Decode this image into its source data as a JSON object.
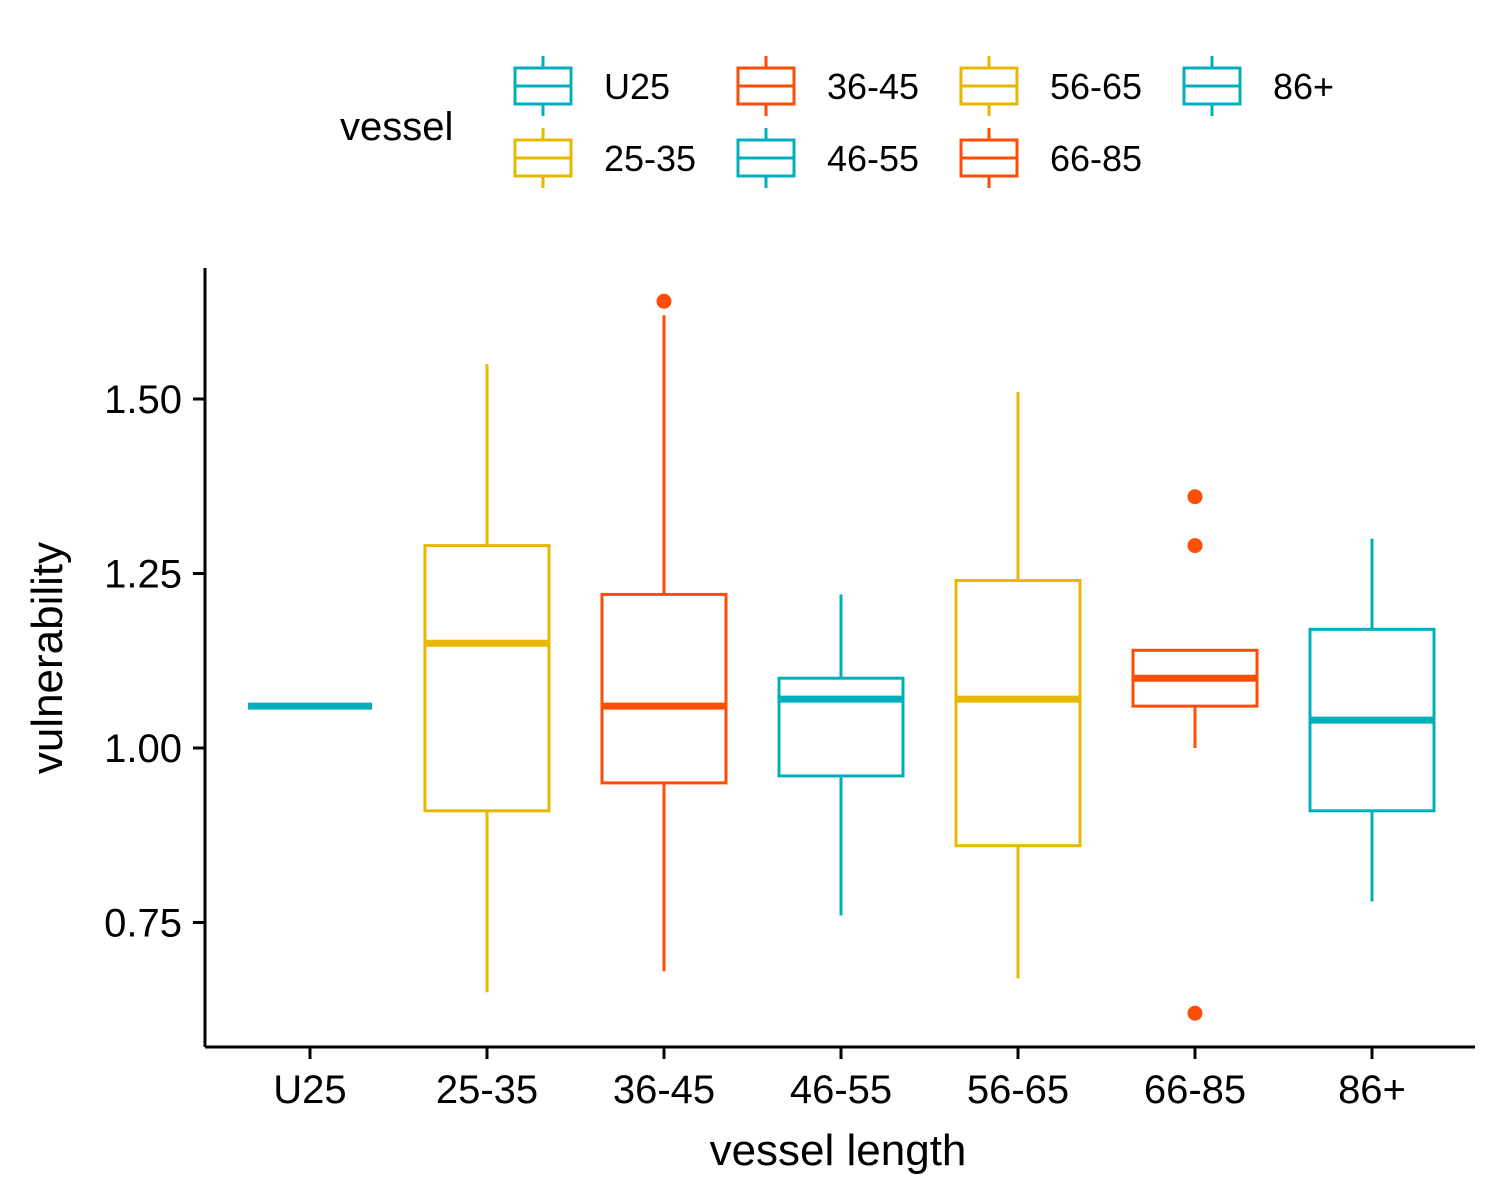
{
  "chart_data": {
    "type": "box",
    "xlabel": "vessel length",
    "ylabel": "vulnerability",
    "ylim": [
      0.595,
      1.69
    ],
    "yticks": [
      0.75,
      1.0,
      1.25,
      1.5
    ],
    "ytick_labels": [
      "0.75",
      "1.00",
      "1.25",
      "1.50"
    ],
    "legend_title": "vessel",
    "legend_position": "top",
    "categories": [
      "U25",
      "25-35",
      "36-45",
      "46-55",
      "56-65",
      "66-85",
      "86+"
    ],
    "colors": [
      "#00AFBB",
      "#E7B800",
      "#FC4E07",
      "#00AFBB",
      "#E7B800",
      "#FC4E07",
      "#00AFBB"
    ],
    "boxes": [
      {
        "category": "U25",
        "lower_whisker": 1.06,
        "q1": 1.06,
        "median": 1.06,
        "q3": 1.06,
        "upper_whisker": 1.06,
        "outliers": []
      },
      {
        "category": "25-35",
        "lower_whisker": 0.65,
        "q1": 0.91,
        "median": 1.15,
        "q3": 1.29,
        "upper_whisker": 1.55,
        "outliers": []
      },
      {
        "category": "36-45",
        "lower_whisker": 0.68,
        "q1": 0.95,
        "median": 1.06,
        "q3": 1.22,
        "upper_whisker": 1.62,
        "outliers": [
          1.64
        ]
      },
      {
        "category": "46-55",
        "lower_whisker": 0.76,
        "q1": 0.96,
        "median": 1.07,
        "q3": 1.1,
        "upper_whisker": 1.22,
        "outliers": []
      },
      {
        "category": "56-65",
        "lower_whisker": 0.67,
        "q1": 0.86,
        "median": 1.07,
        "q3": 1.24,
        "upper_whisker": 1.51,
        "outliers": []
      },
      {
        "category": "66-85",
        "lower_whisker": 1.0,
        "q1": 1.06,
        "median": 1.1,
        "q3": 1.14,
        "upper_whisker": 1.14,
        "outliers": [
          1.36,
          1.29,
          0.62
        ]
      },
      {
        "category": "86+",
        "lower_whisker": 0.78,
        "q1": 0.91,
        "median": 1.04,
        "q3": 1.17,
        "upper_whisker": 1.3,
        "outliers": []
      }
    ]
  }
}
